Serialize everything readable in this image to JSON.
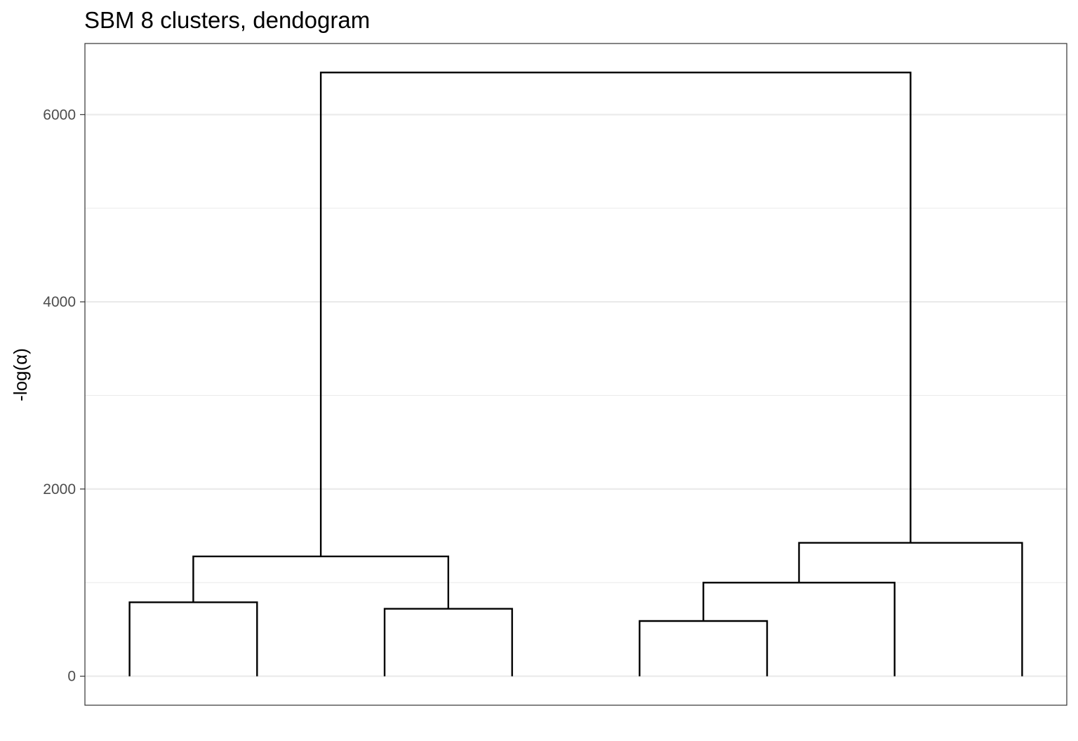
{
  "chart_data": {
    "type": "dendrogram",
    "title": "SBM 8 clusters, dendogram",
    "xlabel": "",
    "ylabel": "-log(α)",
    "ylim": [
      -310,
      6760
    ],
    "xlim": [
      0.65,
      8.35
    ],
    "y_ticks": [
      0,
      2000,
      4000,
      6000
    ],
    "y_tick_labels": [
      "0",
      "2000",
      "4000",
      "6000"
    ],
    "minor_gridlines": [
      1000,
      3000,
      5000
    ],
    "grid": "horizontal",
    "leaves": [
      1,
      2,
      3,
      4,
      5,
      6,
      7,
      8
    ],
    "merges": [
      {
        "left_x": 5,
        "right_x": 6,
        "left_base": 0,
        "right_base": 0,
        "height": 590
      },
      {
        "left_x": 3,
        "right_x": 4,
        "left_base": 0,
        "right_base": 0,
        "height": 720
      },
      {
        "left_x": 1,
        "right_x": 2,
        "left_base": 0,
        "right_base": 0,
        "height": 790
      },
      {
        "left_x": 5.5,
        "right_x": 7,
        "left_base": 590,
        "right_base": 0,
        "height": 1000
      },
      {
        "left_x": 1.5,
        "right_x": 3.5,
        "left_base": 790,
        "right_base": 720,
        "height": 1280
      },
      {
        "left_x": 6.25,
        "right_x": 8,
        "left_base": 1000,
        "right_base": 0,
        "height": 1425
      },
      {
        "left_x": 2.5,
        "right_x": 7.125,
        "left_base": 1280,
        "right_base": 1425,
        "height": 6450
      }
    ]
  },
  "colors": {
    "background": "#ffffff",
    "gridline": "#ebebeb",
    "branch": "#000000",
    "axis_text": "#4d4d4d",
    "panel_border": "#333333"
  }
}
